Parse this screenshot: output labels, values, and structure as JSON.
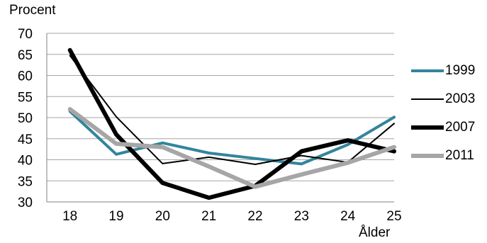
{
  "chart_data": {
    "type": "line",
    "ylabel": "Procent",
    "xlabel": "Ålder",
    "x": [
      18,
      19,
      20,
      21,
      22,
      23,
      24,
      25
    ],
    "ylim": [
      30,
      70
    ],
    "yticks": [
      30,
      35,
      40,
      45,
      50,
      55,
      60,
      65,
      70
    ],
    "grid": true,
    "legend_position": "right",
    "series": [
      {
        "name": "1999",
        "color": "#31859C",
        "width": 4,
        "values": [
          51.5,
          41.3,
          44.0,
          41.6,
          40.3,
          39.0,
          43.6,
          50.1
        ]
      },
      {
        "name": "2003",
        "color": "#000000",
        "width": 2,
        "values": [
          64.7,
          50.2,
          39.1,
          40.6,
          38.9,
          41.0,
          39.4,
          48.6
        ]
      },
      {
        "name": "2007",
        "color": "#000000",
        "width": 6,
        "values": [
          66.0,
          46.0,
          34.5,
          31.0,
          33.8,
          42.0,
          44.6,
          42.0
        ]
      },
      {
        "name": "2011",
        "color": "#A6A6A6",
        "width": 6,
        "values": [
          52.0,
          43.8,
          43.0,
          38.4,
          33.6,
          36.5,
          39.3,
          43.0
        ]
      }
    ]
  }
}
